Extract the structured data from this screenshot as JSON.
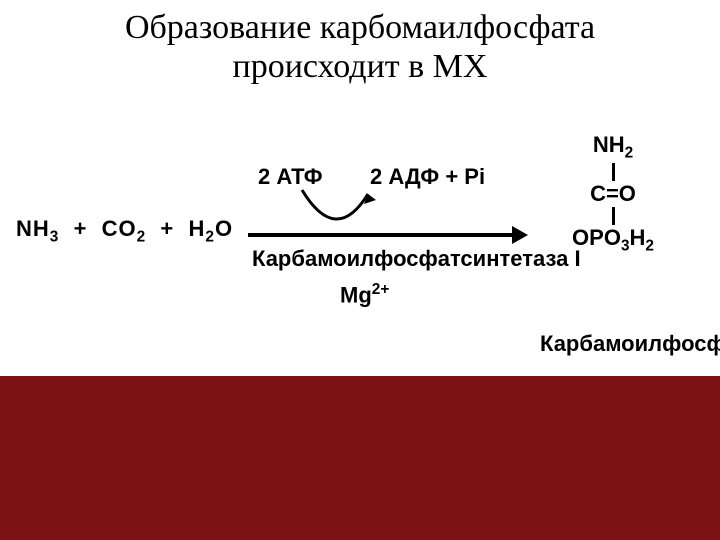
{
  "slide": {
    "title_line1": "Образование карбомаилфосфата",
    "title_line2": "происходит в МХ",
    "background_color": "#7d1212",
    "panel_color": "#ffffff",
    "text_color": "#000000",
    "title_fontsize": 34,
    "label_fontsize": 22
  },
  "reaction": {
    "reactants_html": "NH<span class='sub'>3</span>&nbsp;&nbsp;+&nbsp;&nbsp;CO<span class='sub'>2</span>&nbsp;&nbsp;+&nbsp;&nbsp;H<span class='sub'>2</span>O",
    "atp": "2 АТФ",
    "adp": "2 АДФ + Pi",
    "enzyme": "Карбамоилфосфатсинтетаза I",
    "cofactor_html": "Mg<span class='sup'>2+</span>",
    "arrow_color": "#000000"
  },
  "product": {
    "nh2": "NH",
    "nh2_sub": "2",
    "co": "C=O",
    "opo": "OPO",
    "opo_sub1": "3",
    "opo_h": "H",
    "opo_sub2": "2",
    "label": "Карбамоилфосфат"
  }
}
